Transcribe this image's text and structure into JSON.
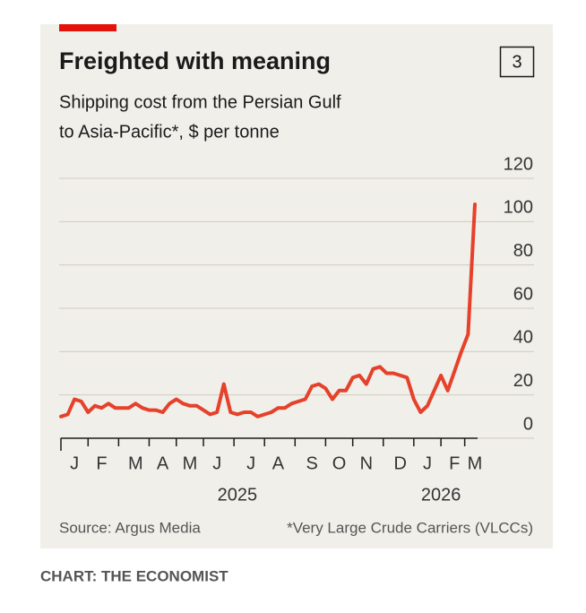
{
  "chart_data": {
    "type": "line",
    "title": "Freighted with meaning",
    "chart_number": "3",
    "subtitle_lines": [
      "Shipping cost from the Persian Gulf",
      "to Asia-Pacific*, $ per tonne"
    ],
    "source": "Source: Argus Media",
    "footnote": "*Very Large Crude Carriers (VLCCs)",
    "credit": "CHART: THE ECONOMIST",
    "categories": [
      null,
      null,
      "J",
      null,
      null,
      null,
      "F",
      null,
      null,
      null,
      null,
      "M",
      null,
      null,
      null,
      "A",
      null,
      null,
      null,
      "M",
      null,
      null,
      null,
      "J",
      null,
      null,
      null,
      null,
      "J",
      null,
      null,
      null,
      "A",
      null,
      null,
      null,
      null,
      "S",
      null,
      null,
      null,
      "O",
      null,
      null,
      null,
      "N",
      null,
      null,
      null,
      null,
      "D",
      null,
      null,
      null,
      "J",
      null,
      null,
      null,
      "F",
      null,
      null,
      "M"
    ],
    "year_categories": [
      null,
      null,
      null,
      null,
      null,
      null,
      null,
      null,
      null,
      null,
      null,
      null,
      null,
      null,
      null,
      null,
      null,
      null,
      null,
      null,
      null,
      null,
      null,
      null,
      null,
      null,
      "2025",
      null,
      null,
      null,
      null,
      null,
      null,
      null,
      null,
      null,
      null,
      null,
      null,
      null,
      null,
      null,
      null,
      null,
      null,
      null,
      null,
      null,
      null,
      null,
      null,
      null,
      null,
      null,
      null,
      null,
      "2026",
      null,
      null,
      null,
      null,
      null
    ],
    "series": [
      {
        "name": "Shipping cost",
        "color": "#e5412b",
        "values": [
          10,
          11,
          18,
          17,
          12,
          15,
          14,
          16,
          14,
          14,
          14,
          16,
          14,
          13,
          13,
          12,
          16,
          18,
          16,
          15,
          15,
          13,
          11,
          12,
          25,
          12,
          11,
          12,
          12,
          10,
          11,
          12,
          14,
          14,
          16,
          17,
          18,
          24,
          25,
          23,
          18,
          22,
          22,
          28,
          29,
          25,
          32,
          33,
          30,
          30,
          29,
          28,
          18,
          12,
          15,
          22,
          29,
          22,
          31,
          40,
          48,
          108
        ]
      }
    ],
    "ylim": [
      0,
      120
    ],
    "yticks": [
      0,
      20,
      40,
      60,
      80,
      100,
      120
    ],
    "grid": true
  }
}
